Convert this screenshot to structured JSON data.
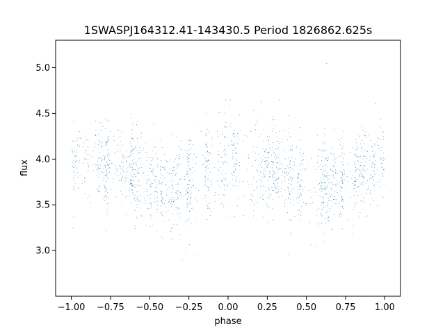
{
  "chart_data": {
    "type": "scatter",
    "title": "1SWASPJ164312.41-143430.5 Period 1826862.625s",
    "xlabel": "phase",
    "ylabel": "flux",
    "xlim": [
      -1.1,
      1.1
    ],
    "ylim": [
      2.5,
      5.3
    ],
    "x_ticks": [
      -1.0,
      -0.75,
      -0.5,
      -0.25,
      0.0,
      0.25,
      0.5,
      0.75,
      1.0
    ],
    "x_tick_labels": [
      "−1.00",
      "−0.75",
      "−0.50",
      "−0.25",
      "0.00",
      "0.25",
      "0.50",
      "0.75",
      "1.00"
    ],
    "y_ticks": [
      3.0,
      3.5,
      4.0,
      4.5,
      5.0
    ],
    "y_tick_labels": [
      "3.0",
      "3.5",
      "4.0",
      "4.5",
      "5.0"
    ],
    "grid": false,
    "marker_color": "#1f77b4",
    "series": [
      {
        "profile_phase": [
          -1.0,
          -0.75,
          -0.6,
          -0.5,
          -0.4,
          -0.25,
          -0.1,
          0.0,
          0.1,
          0.25,
          0.4,
          0.5,
          0.6,
          0.75,
          0.9,
          1.0
        ],
        "profile_median_flux": [
          3.98,
          3.95,
          3.85,
          3.72,
          3.68,
          3.75,
          3.88,
          3.98,
          3.95,
          3.9,
          3.8,
          3.72,
          3.7,
          3.78,
          3.92,
          3.98
        ],
        "scatter_sd_flux": 0.22,
        "x_range": [
          -1.0,
          1.0
        ],
        "y_range": [
          2.62,
          5.18
        ],
        "approx_point_count": 14000
      }
    ]
  }
}
